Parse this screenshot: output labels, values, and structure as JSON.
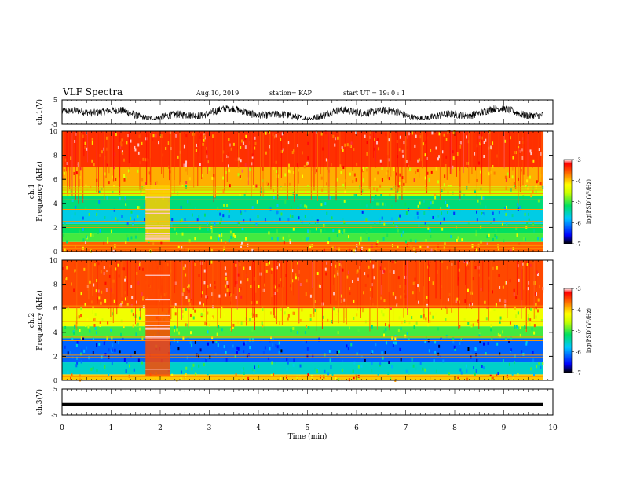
{
  "header": {
    "title": "VLF Spectra",
    "date": "Aug.10, 2019",
    "station": "station= KAP",
    "start_ut": "start  UT =   19: 0  : 1"
  },
  "chart_data": [
    {
      "type": "line",
      "panel": "ch1-waveform",
      "ylabel": "ch.1(V)",
      "ylim": [
        -5,
        5
      ],
      "yticks": [
        -5,
        5
      ],
      "xlim": [
        0,
        10
      ],
      "data_xrange": [
        0,
        9.8
      ],
      "description_values": {
        "baseline": -0.8,
        "amplitude_range": [
          -3,
          3
        ]
      }
    },
    {
      "type": "heatmap",
      "panel": "ch1-spectrogram",
      "ylabel": "ch.1\nFrequency (kHz)",
      "ylim": [
        0,
        10
      ],
      "yticks": [
        0,
        2,
        4,
        6,
        8,
        10
      ],
      "xlim": [
        0,
        10
      ],
      "data_xrange": [
        0,
        9.8
      ],
      "colorbar": {
        "label": "log(PSD)(V²/Hz)",
        "range": [
          -7,
          -3
        ],
        "ticks": [
          -3,
          -4,
          -5,
          -6,
          -7
        ]
      },
      "bands": [
        {
          "fmin": 0.0,
          "fmax": 0.8,
          "level": -3.6
        },
        {
          "fmin": 0.8,
          "fmax": 1.5,
          "level": -5.0
        },
        {
          "fmin": 1.5,
          "fmax": 2.3,
          "level": -5.2
        },
        {
          "fmin": 2.3,
          "fmax": 3.5,
          "level": -5.7
        },
        {
          "fmin": 3.5,
          "fmax": 4.6,
          "level": -5.3
        },
        {
          "fmin": 4.6,
          "fmax": 5.4,
          "level": -4.6
        },
        {
          "fmin": 5.4,
          "fmax": 7.0,
          "level": -3.9
        },
        {
          "fmin": 7.0,
          "fmax": 10.0,
          "level": -3.4
        }
      ],
      "lines_khz": [
        0.25,
        0.5,
        2.0,
        2.15,
        2.5,
        3.5,
        4.3,
        4.8,
        5.1,
        5.3
      ],
      "burst": {
        "tmin": 1.7,
        "tmax": 2.2,
        "fmin": 0.8,
        "fmax": 5.5,
        "level": -4.0
      }
    },
    {
      "type": "heatmap",
      "panel": "ch2-spectrogram",
      "ylabel": "ch.2\nFrequency (kHz)",
      "ylim": [
        0,
        10
      ],
      "yticks": [
        0,
        2,
        4,
        6,
        8,
        10
      ],
      "xlim": [
        0,
        10
      ],
      "data_xrange": [
        0,
        9.8
      ],
      "colorbar": {
        "label": "log(PSD)(V²/Hz)",
        "range": [
          -7,
          -3
        ],
        "ticks": [
          -3,
          -4,
          -5,
          -6,
          -7
        ]
      },
      "bands": [
        {
          "fmin": 0.0,
          "fmax": 0.5,
          "level": -4.0
        },
        {
          "fmin": 0.5,
          "fmax": 1.5,
          "level": -5.6
        },
        {
          "fmin": 1.5,
          "fmax": 3.5,
          "level": -6.2
        },
        {
          "fmin": 3.5,
          "fmax": 4.5,
          "level": -5.0
        },
        {
          "fmin": 4.5,
          "fmax": 6.0,
          "level": -4.3
        },
        {
          "fmin": 6.0,
          "fmax": 10.0,
          "level": -3.5
        }
      ],
      "lines_khz": [
        0.3,
        1.9,
        2.1,
        3.3,
        3.6,
        4.9,
        5.2,
        6.2
      ],
      "burst": {
        "tmin": 1.7,
        "tmax": 2.2,
        "fmin": 0.4,
        "fmax": 10.0,
        "level": -3.5
      }
    },
    {
      "type": "line",
      "panel": "ch3-waveform",
      "ylabel": "ch.3(V)",
      "ylim": [
        -5,
        5
      ],
      "yticks": [
        -5,
        5
      ],
      "xlim": [
        0,
        10
      ],
      "data_xrange": [
        0,
        9.8
      ],
      "xlabel": "Time  (min)",
      "xticks": [
        0,
        1,
        2,
        3,
        4,
        5,
        6,
        7,
        8,
        9,
        10
      ],
      "constant_value": -1.0
    }
  ]
}
